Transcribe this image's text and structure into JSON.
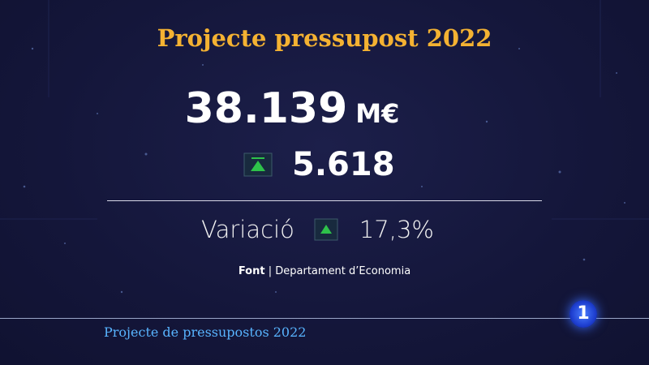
{
  "title": "Projecte pressupost 2022",
  "amount": {
    "value": "38.139",
    "unit": "M€"
  },
  "increase": "5.618",
  "variation": {
    "label": "Variació",
    "value": "17,3%"
  },
  "source": {
    "label": "Font",
    "separator": "|",
    "text": "Departament d’Economia"
  },
  "ticker": "Projecte de pressupostos 2022",
  "logo": "1"
}
